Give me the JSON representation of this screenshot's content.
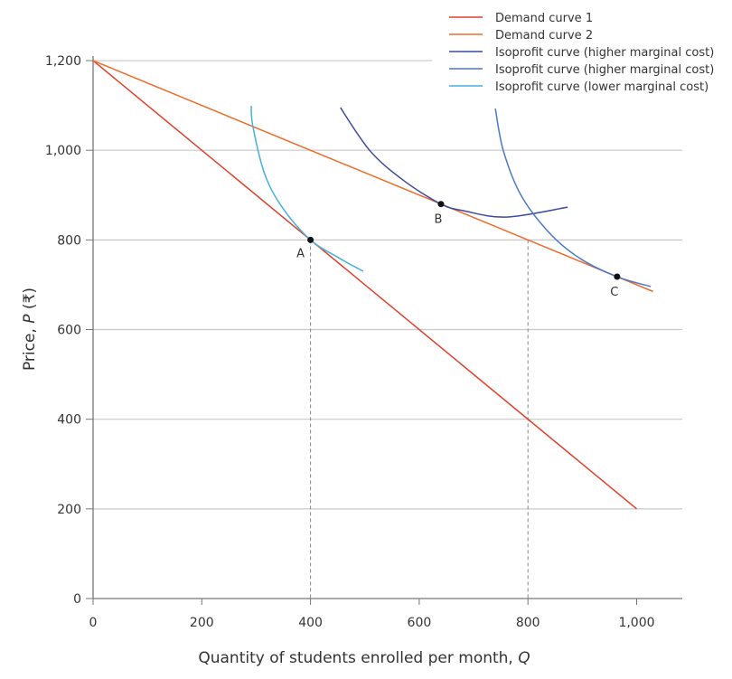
{
  "chart_data": {
    "type": "line",
    "xlabel": "Quantity of students enrolled per month, ",
    "xlabel_var": "Q",
    "ylabel": "Price, ",
    "ylabel_var": "P",
    "ylabel_unit": " (₹)",
    "xlim": [
      0,
      1080
    ],
    "ylim": [
      0,
      1200
    ],
    "xticks": [
      0,
      200,
      400,
      600,
      800,
      1000
    ],
    "xtick_labels": [
      "0",
      "200",
      "400",
      "600",
      "800",
      "1,000"
    ],
    "yticks": [
      0,
      200,
      400,
      600,
      800,
      1000,
      1200
    ],
    "ytick_labels": [
      "0",
      "200",
      "400",
      "600",
      "800",
      "1,000",
      "1,200"
    ],
    "grid": "horizontal",
    "legend_position": "top-right",
    "series": [
      {
        "name": "Demand curve 1",
        "color": "#e0402a",
        "points": [
          [
            0,
            1200
          ],
          [
            1000,
            200
          ]
        ]
      },
      {
        "name": "Demand curve 2",
        "color": "#ee6b2a",
        "points": [
          [
            0,
            1200
          ],
          [
            1030,
            685
          ]
        ]
      },
      {
        "name": "Isoprofit curve (higher marginal cost)",
        "color": "#3a4aa0",
        "points": [
          [
            455,
            1095
          ],
          [
            510,
            998
          ],
          [
            572,
            932
          ],
          [
            640,
            880
          ],
          [
            682,
            865
          ],
          [
            760,
            851
          ],
          [
            873,
            873
          ]
        ]
      },
      {
        "name": "Isoprofit curve (higher marginal cost)",
        "color": "#4a78c8",
        "points": [
          [
            740,
            1093
          ],
          [
            755,
            998
          ],
          [
            788,
            898
          ],
          [
            843,
            811
          ],
          [
            898,
            757
          ],
          [
            964,
            718
          ],
          [
            1026,
            696
          ]
        ]
      },
      {
        "name": "Isoprofit curve (lower marginal cost)",
        "color": "#45b0de",
        "points": [
          [
            291,
            1099
          ],
          [
            294,
            1053
          ],
          [
            316,
            946
          ],
          [
            349,
            871
          ],
          [
            400,
            800
          ],
          [
            452,
            760
          ],
          [
            497,
            730
          ]
        ]
      }
    ],
    "points": [
      {
        "label": "A",
        "x": 400,
        "y": 800
      },
      {
        "label": "B",
        "x": 640,
        "y": 880
      },
      {
        "label": "C",
        "x": 964,
        "y": 718
      }
    ],
    "dashed_guides": [
      {
        "x": 400,
        "y": 800
      },
      {
        "x": 800,
        "y": 800
      }
    ]
  }
}
